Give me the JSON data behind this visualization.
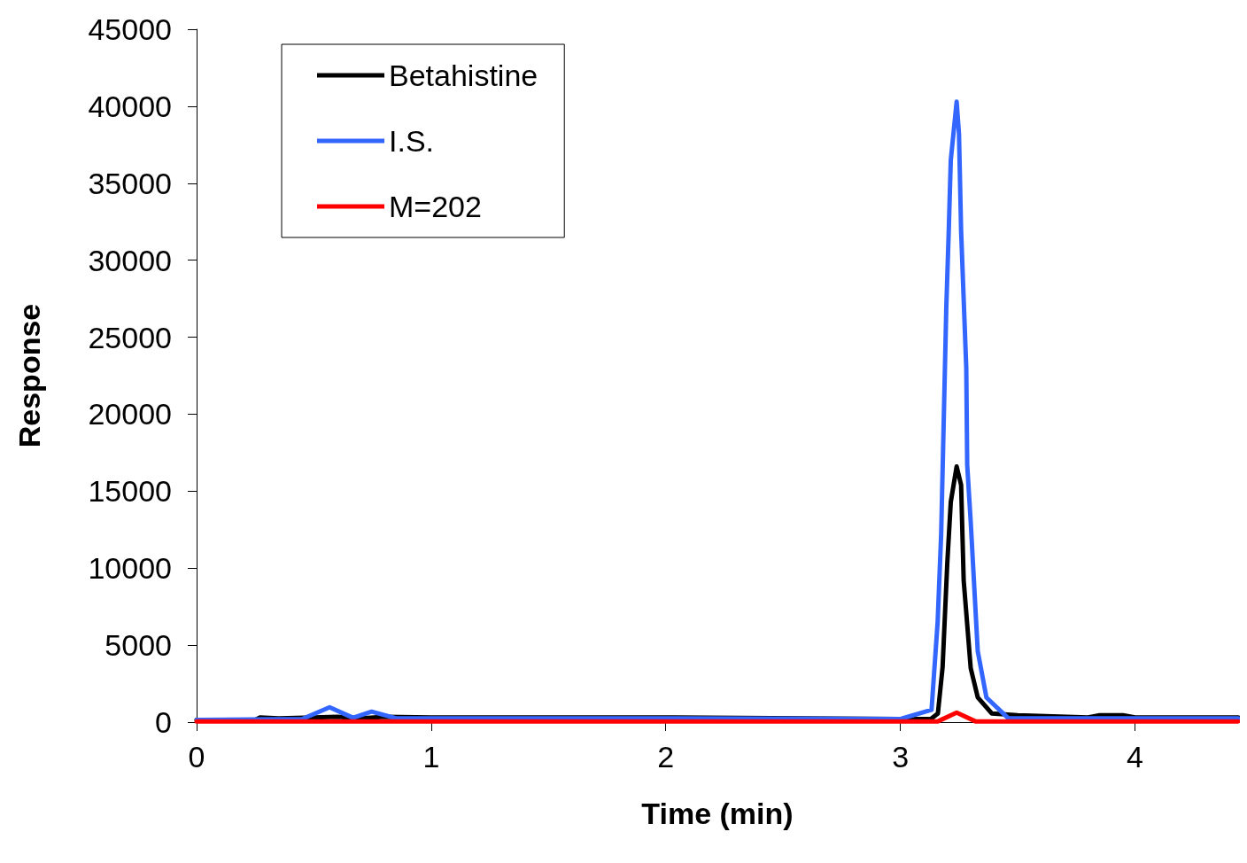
{
  "chart_data": {
    "type": "line",
    "xlabel": "Time (min)",
    "ylabel": "Response",
    "xlim": [
      0,
      4.44
    ],
    "xticks": [
      0,
      1,
      2,
      3,
      4
    ],
    "ylim": [
      0,
      45000
    ],
    "yticks": [
      0,
      5000,
      10000,
      15000,
      20000,
      25000,
      30000,
      35000,
      40000,
      45000
    ],
    "grid": false,
    "legend": "top left",
    "marker": "none",
    "line_style": "solid",
    "series": [
      {
        "name": "Betahistine",
        "color": "#000000",
        "x": [
          0,
          0.25,
          0.27,
          0.35,
          0.5,
          0.6,
          0.7,
          0.8,
          1.0,
          1.5,
          2.0,
          3.0,
          3.13,
          3.16,
          3.18,
          3.2,
          3.215,
          3.24,
          3.259,
          3.27,
          3.3,
          3.33,
          3.39,
          3.5,
          3.8,
          3.85,
          3.95,
          4.0,
          4.44
        ],
        "values": [
          150,
          150,
          300,
          250,
          300,
          350,
          250,
          350,
          300,
          300,
          300,
          200,
          200,
          560,
          3550,
          10300,
          14300,
          16600,
          15400,
          9200,
          3500,
          1600,
          560,
          450,
          300,
          450,
          450,
          300,
          300
        ]
      },
      {
        "name": "I.S.",
        "color": "#3366ff",
        "x": [
          0,
          0.45,
          0.567,
          0.667,
          0.746,
          0.85,
          1.0,
          2.0,
          3.0,
          3.133,
          3.159,
          3.174,
          3.196,
          3.206,
          3.215,
          3.24,
          3.25,
          3.259,
          3.281,
          3.285,
          3.3,
          3.33,
          3.367,
          3.46,
          4.0,
          4.44
        ],
        "values": [
          150,
          200,
          960,
          280,
          680,
          250,
          250,
          250,
          200,
          800,
          6500,
          12200,
          27000,
          31750,
          36500,
          40300,
          38200,
          31900,
          23000,
          16700,
          13000,
          4600,
          1600,
          250,
          250,
          250
        ]
      },
      {
        "name": "M=202",
        "color": "#ff0000",
        "x": [
          0,
          3.16,
          3.24,
          3.32,
          4.44
        ],
        "values": [
          50,
          50,
          620,
          50,
          50
        ]
      }
    ]
  }
}
